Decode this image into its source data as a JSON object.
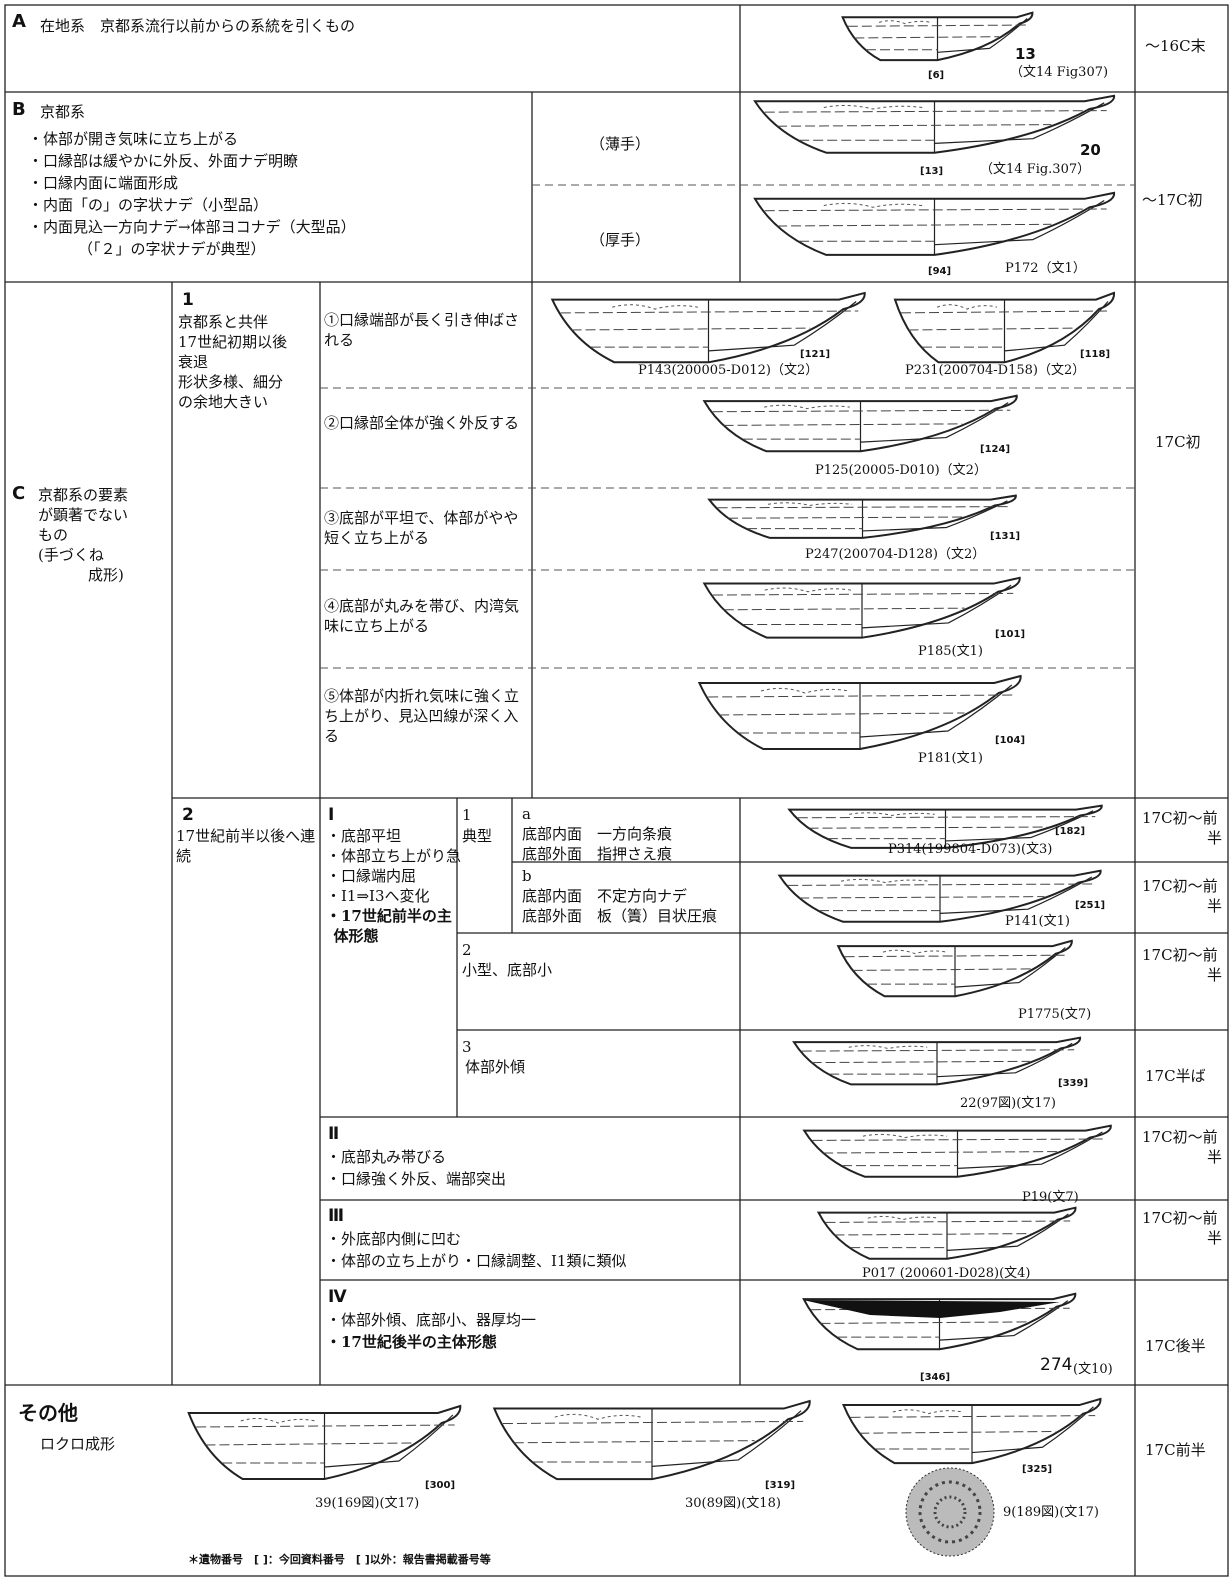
{
  "row_a": {
    "label": "A",
    "text": "在地系　京都系流行以前からの系統を引くもの",
    "figure": {
      "no": "13",
      "ref": "[6]",
      "source": "（文14 Fig307)"
    },
    "date": "～16C末"
  },
  "row_b": {
    "label": "B",
    "title": "京都系",
    "points": [
      "・体部が開き気味に立ち上がる",
      "・口縁部は緩やかに外反、外面ナデ明瞭",
      "・口縁内面に端面形成",
      "・内面「の」の字状ナデ（小型品）",
      "・内面見込一方向ナデ→体部ヨコナデ（大型品）",
      "（「２」の字状ナデが典型）"
    ],
    "thin": {
      "label": "（薄手）",
      "no": "20",
      "ref": "[13]",
      "source": "（文14 Fig.307）"
    },
    "thick": {
      "label": "（厚手）",
      "ref": "[94]",
      "source": "P172（文1）"
    },
    "date": "～17C初"
  },
  "row_c": {
    "label": "C",
    "lines": [
      "京都系の要素",
      "が顕著でない",
      "もの",
      "(手づくね",
      "成形)"
    ],
    "group_1": {
      "number": "1",
      "lines": [
        "京都系と共伴",
        "17世紀初期以後",
        "衰退",
        "形状多様、細分",
        "の余地大きい"
      ],
      "date": "17C初",
      "items": [
        {
          "text": "①口縁端部が長く引き伸ばされる",
          "figures": [
            {
              "ref": "[121]",
              "source": "P143(200005-D012)（文2）"
            },
            {
              "ref": "[118]",
              "source": "P231(200704-D158)（文2）"
            }
          ]
        },
        {
          "text": "②口縁部全体が強く外反する",
          "figures": [
            {
              "ref": "[124]",
              "source": "P125(20005-D010)（文2）"
            }
          ]
        },
        {
          "text": "③底部が平坦で、体部がやや短く立ち上がる",
          "figures": [
            {
              "ref": "[131]",
              "source": "P247(200704-D128)（文2）"
            }
          ]
        },
        {
          "text": "④底部が丸みを帯び、内湾気味に立ち上がる",
          "figures": [
            {
              "ref": "[101]",
              "source": "P185(文1)"
            }
          ]
        },
        {
          "text": "⑤体部が内折れ気味に強く立ち上がり、見込凹線が深く入る",
          "figures": [
            {
              "ref": "[104]",
              "source": "P181(文1)"
            }
          ]
        }
      ]
    },
    "group_2": {
      "number": "2",
      "text": "17世紀前半以後へ連続",
      "type_1": {
        "numeral": "Ⅰ",
        "points": [
          "・底部平坦",
          "・体部立ち上がり急",
          "・口縁端内屈",
          "・Ⅰ1⇒Ⅰ3へ変化",
          "・17世紀前半の主体形態"
        ],
        "sub_1": {
          "number": "1",
          "name": "典型",
          "a": {
            "letter": "a",
            "lines": [
              "底部内面　一方向条痕",
              "底部外面　指押さえ痕"
            ],
            "ref": "[182]",
            "source": "P314(199804-D073)(文3)",
            "date": "17C初～前半"
          },
          "b": {
            "letter": "b",
            "lines": [
              "底部内面　不定方向ナデ",
              "底部外面　板（簀）目状圧痕"
            ],
            "ref": "[251]",
            "source": "P141(文1)",
            "date": "17C初～前半"
          }
        },
        "sub_2": {
          "number": "2",
          "text": "小型、底部小",
          "source": "P1775(文7)",
          "date": "17C初～前半"
        },
        "sub_3": {
          "number": "3",
          "text": "体部外傾",
          "ref": "[339]",
          "source": "22(97図)(文17)",
          "date": "17C半ば"
        }
      },
      "type_2": {
        "numeral": "Ⅱ",
        "points": [
          "・底部丸み帯びる",
          "・口縁強く外反、端部突出"
        ],
        "source": "P19(文7)",
        "date": "17C初～前半"
      },
      "type_3": {
        "numeral": "Ⅲ",
        "points": [
          "・外底部内側に凹む",
          "・体部の立ち上がり・口縁調整、Ⅰ1類に類似"
        ],
        "source": "P017 (200601-D028)(文4)",
        "date": "17C初～前半"
      },
      "type_4": {
        "numeral": "Ⅳ",
        "points": [
          "・体部外傾、底部小、器厚均一",
          "・17世紀後半の主体形態"
        ],
        "ref": "[346]",
        "no": "274",
        "source": "(文10)",
        "date": "17C後半"
      }
    }
  },
  "other": {
    "title": "その他",
    "subtitle": "ロクロ成形",
    "figures": [
      {
        "ref": "[300]",
        "source": "39(169図)(文17)"
      },
      {
        "ref": "[319]",
        "source": "30(89図)(文18)"
      },
      {
        "ref": "[325]",
        "source": "9(189図)(文17)"
      }
    ],
    "date": "17C前半",
    "note": "＊遺物番号　[ ]：今回資料番号　[ ]以外：報告書掲載番号等"
  }
}
